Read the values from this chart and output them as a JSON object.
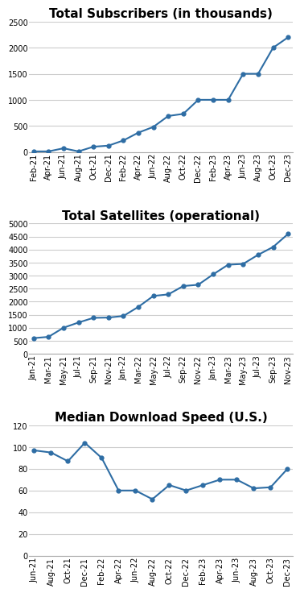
{
  "chart1": {
    "title": "Total Subscribers (in thousands)",
    "labels": [
      "Feb-21",
      "Apr-21",
      "Jun-21",
      "Aug-21",
      "Oct-21",
      "Dec-21",
      "Feb-22",
      "Apr-22",
      "Jun-22",
      "Aug-22",
      "Oct-22",
      "Dec-22",
      "Feb-23",
      "Apr-23",
      "Jun-23",
      "Aug-23",
      "Oct-23",
      "Dec-23"
    ],
    "values": [
      10,
      10,
      70,
      10,
      100,
      120,
      220,
      370,
      480,
      690,
      730,
      1000,
      1000,
      1000,
      1500,
      1500,
      2000,
      2200
    ],
    "ylim": [
      0,
      2500
    ],
    "yticks": [
      0,
      500,
      1000,
      1500,
      2000,
      2500
    ],
    "color": "#2E6DA4"
  },
  "chart2": {
    "title": "Total Satellites (operational)",
    "labels": [
      "Jan-21",
      "Mar-21",
      "May-21",
      "Jul-21",
      "Sep-21",
      "Nov-21",
      "Jan-22",
      "Mar-22",
      "May-22",
      "Jul-22",
      "Sep-22",
      "Nov-22",
      "Jan-23",
      "Mar-23",
      "May-23",
      "Jul-23",
      "Sep-23",
      "Nov-23"
    ],
    "values": [
      600,
      650,
      1000,
      1200,
      1380,
      1390,
      1450,
      1800,
      2220,
      2280,
      2600,
      2650,
      3050,
      3420,
      3450,
      3800,
      4100,
      4600
    ],
    "ylim": [
      0,
      5000
    ],
    "yticks": [
      0,
      500,
      1000,
      1500,
      2000,
      2500,
      3000,
      3500,
      4000,
      4500,
      5000
    ],
    "color": "#2E6DA4"
  },
  "chart3": {
    "title": "Median Download Speed (U.S.)",
    "labels": [
      "Jun-21",
      "Aug-21",
      "Oct-21",
      "Dec-21",
      "Feb-22",
      "Apr-22",
      "Jun-22",
      "Aug-22",
      "Oct-22",
      "Dec-22",
      "Feb-23",
      "Apr-23",
      "Jun-23",
      "Aug-23",
      "Oct-23",
      "Dec-23"
    ],
    "values": [
      97,
      95,
      87,
      104,
      90,
      60,
      60,
      52,
      65,
      60,
      65,
      70,
      70,
      62,
      63,
      80
    ],
    "ylim": [
      0,
      120
    ],
    "yticks": [
      0,
      20,
      40,
      60,
      80,
      100,
      120
    ],
    "color": "#2E6DA4"
  },
  "bg_color": "#FFFFFF",
  "grid_color": "#CCCCCC",
  "title_fontsize": 11,
  "tick_fontsize": 7,
  "line_width": 1.5,
  "marker": "o",
  "marker_size": 3.5
}
